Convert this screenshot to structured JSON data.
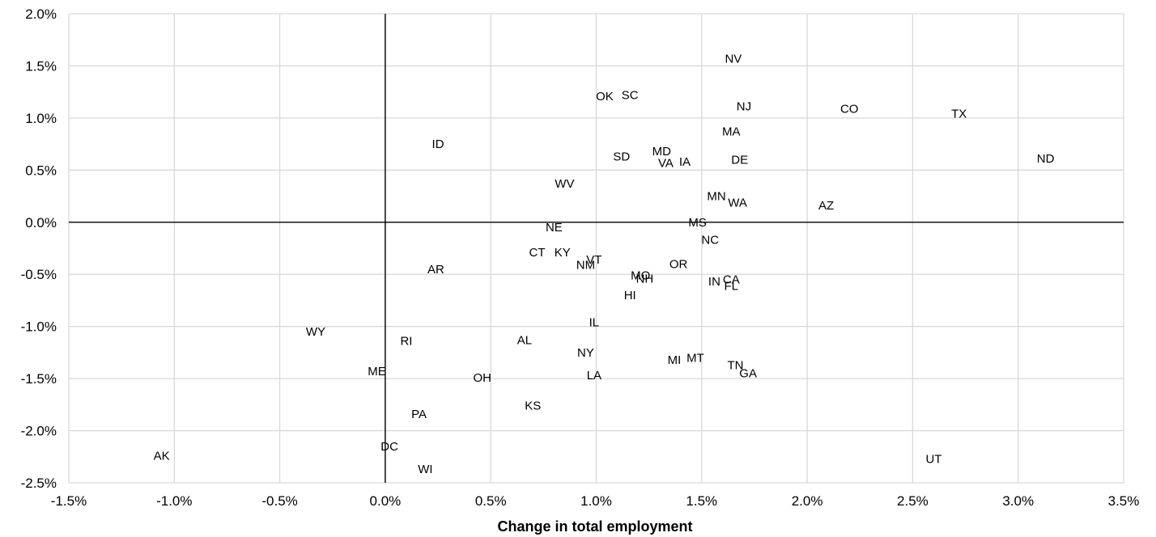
{
  "chart_data": {
    "type": "scatter",
    "title": "",
    "xlabel": "Change in total employment",
    "ylabel": "",
    "xlim": [
      -0.015,
      0.035
    ],
    "ylim": [
      -0.025,
      0.02
    ],
    "x_ticks": [
      -0.015,
      -0.01,
      -0.005,
      0.0,
      0.005,
      0.01,
      0.015,
      0.02,
      0.025,
      0.03,
      0.035
    ],
    "x_tick_labels": [
      "-1.5%",
      "-1.0%",
      "-0.5%",
      "0.0%",
      "0.5%",
      "1.0%",
      "1.5%",
      "2.0%",
      "2.5%",
      "3.0%",
      "3.5%"
    ],
    "y_ticks": [
      0.02,
      0.015,
      0.01,
      0.005,
      0.0,
      -0.005,
      -0.01,
      -0.015,
      -0.02,
      -0.025
    ],
    "y_tick_labels": [
      "2.0%",
      "1.5%",
      "1.0%",
      "0.5%",
      "0.0%",
      "-0.5%",
      "-1.0%",
      "-1.5%",
      "-2.0%",
      "-2.5%"
    ],
    "grid": "vertical and horizontal",
    "colors": {
      "grid": "#d9d9d9",
      "axis": "#000000",
      "text": "#000000"
    },
    "points": [
      {
        "label": "NV",
        "x": 0.0165,
        "y": 0.0157
      },
      {
        "label": "OK",
        "x": 0.0104,
        "y": 0.0121
      },
      {
        "label": "SC",
        "x": 0.0116,
        "y": 0.0122
      },
      {
        "label": "NJ",
        "x": 0.017,
        "y": 0.0111
      },
      {
        "label": "CO",
        "x": 0.022,
        "y": 0.0109
      },
      {
        "label": "TX",
        "x": 0.0272,
        "y": 0.0104
      },
      {
        "label": "MA",
        "x": 0.0164,
        "y": 0.0087
      },
      {
        "label": "ID",
        "x": 0.0025,
        "y": 0.0075
      },
      {
        "label": "SD",
        "x": 0.0112,
        "y": 0.0063
      },
      {
        "label": "MD",
        "x": 0.0131,
        "y": 0.0068
      },
      {
        "label": "VA",
        "x": 0.0133,
        "y": 0.0057
      },
      {
        "label": "IA",
        "x": 0.0142,
        "y": 0.0058
      },
      {
        "label": "DE",
        "x": 0.0168,
        "y": 0.006
      },
      {
        "label": "ND",
        "x": 0.0313,
        "y": 0.0061
      },
      {
        "label": "WV",
        "x": 0.0085,
        "y": 0.0037
      },
      {
        "label": "MN",
        "x": 0.0157,
        "y": 0.0025
      },
      {
        "label": "WA",
        "x": 0.0167,
        "y": 0.0019
      },
      {
        "label": "AZ",
        "x": 0.0209,
        "y": 0.0016
      },
      {
        "label": "MS",
        "x": 0.0148,
        "y": 0.0
      },
      {
        "label": "NE",
        "x": 0.008,
        "y": -0.0005
      },
      {
        "label": "NC",
        "x": 0.0154,
        "y": -0.0017
      },
      {
        "label": "CT",
        "x": 0.0072,
        "y": -0.0029
      },
      {
        "label": "KY",
        "x": 0.0084,
        "y": -0.0029
      },
      {
        "label": "VT",
        "x": 0.0099,
        "y": -0.0036
      },
      {
        "label": "NM",
        "x": 0.0095,
        "y": -0.0041
      },
      {
        "label": "OR",
        "x": 0.0139,
        "y": -0.004
      },
      {
        "label": "AR",
        "x": 0.0024,
        "y": -0.0045
      },
      {
        "label": "MO",
        "x": 0.0121,
        "y": -0.0051
      },
      {
        "label": "NH",
        "x": 0.0123,
        "y": -0.0054
      },
      {
        "label": "IN",
        "x": 0.0156,
        "y": -0.0057
      },
      {
        "label": "CA",
        "x": 0.0164,
        "y": -0.0055
      },
      {
        "label": "FL",
        "x": 0.0164,
        "y": -0.0061
      },
      {
        "label": "HI",
        "x": 0.0116,
        "y": -0.007
      },
      {
        "label": "IL",
        "x": 0.0099,
        "y": -0.0096
      },
      {
        "label": "WY",
        "x": -0.0033,
        "y": -0.0105
      },
      {
        "label": "RI",
        "x": 0.001,
        "y": -0.0114
      },
      {
        "label": "AL",
        "x": 0.0066,
        "y": -0.0113
      },
      {
        "label": "NY",
        "x": 0.0095,
        "y": -0.0125
      },
      {
        "label": "MI",
        "x": 0.0137,
        "y": -0.0132
      },
      {
        "label": "MT",
        "x": 0.0147,
        "y": -0.013
      },
      {
        "label": "TN",
        "x": 0.0166,
        "y": -0.0137
      },
      {
        "label": "GA",
        "x": 0.0172,
        "y": -0.0145
      },
      {
        "label": "ME",
        "x": -0.0004,
        "y": -0.0143
      },
      {
        "label": "OH",
        "x": 0.0046,
        "y": -0.0149
      },
      {
        "label": "LA",
        "x": 0.0099,
        "y": -0.0147
      },
      {
        "label": "KS",
        "x": 0.007,
        "y": -0.0176
      },
      {
        "label": "PA",
        "x": 0.0016,
        "y": -0.0184
      },
      {
        "label": "DC",
        "x": 0.0002,
        "y": -0.0215
      },
      {
        "label": "AK",
        "x": -0.0106,
        "y": -0.0224
      },
      {
        "label": "UT",
        "x": 0.026,
        "y": -0.0227
      },
      {
        "label": "WI",
        "x": 0.0019,
        "y": -0.0237
      }
    ]
  }
}
